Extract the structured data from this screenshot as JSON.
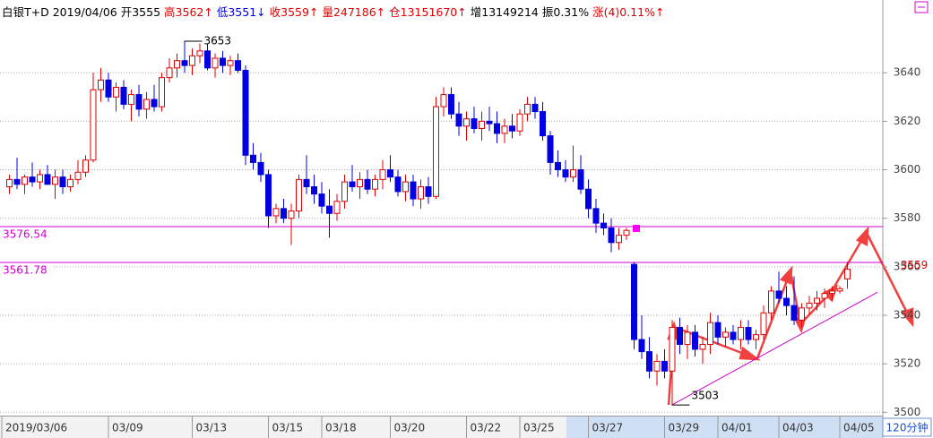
{
  "chart_data": {
    "type": "candlestick",
    "header": [
      {
        "text": "白银T+D 2019/04/06 开3555",
        "tone": "k"
      },
      {
        "text": "高3562↑",
        "tone": "r"
      },
      {
        "text": "低3551↓",
        "tone": "b"
      },
      {
        "text": "收3559↑",
        "tone": "r"
      },
      {
        "text": "量247186↑",
        "tone": "r"
      },
      {
        "text": "仓13151670↑",
        "tone": "r"
      },
      {
        "text": "增13149214",
        "tone": "k"
      },
      {
        "text": "振0.31%",
        "tone": "k"
      },
      {
        "text": "涨(4)0.11%↑",
        "tone": "r"
      }
    ],
    "period": "120分钟",
    "ylim": [
      3499,
      3670
    ],
    "yticks": [
      3500,
      3520,
      3540,
      3560,
      3580,
      3600,
      3620,
      3640
    ],
    "xlim": [
      0,
      110
    ],
    "xticks": [
      {
        "value": 0,
        "label": "2019/03/06"
      },
      {
        "value": 14,
        "label": "03/09"
      },
      {
        "value": 25,
        "label": "03/13"
      },
      {
        "value": 35,
        "label": "03/15"
      },
      {
        "value": 42,
        "label": "03/18"
      },
      {
        "value": 51,
        "label": "03/20"
      },
      {
        "value": 61,
        "label": "03/22"
      },
      {
        "value": 68,
        "label": "03/25"
      },
      {
        "value": 77,
        "label": "03/27"
      },
      {
        "value": 87,
        "label": "03/29"
      },
      {
        "value": 94,
        "label": "04/01"
      },
      {
        "value": 102,
        "label": "04/03"
      },
      {
        "value": 110,
        "label": "04/05"
      }
    ],
    "up_color": "#e00000",
    "down_color": "#0000e0",
    "hlines": [
      3576.54,
      3561.78
    ],
    "hline_color": "#cc00cc",
    "last_price": 3559,
    "annotations": [
      {
        "index": 23,
        "value": 3653
      },
      {
        "index": 87,
        "value": 3503
      }
    ],
    "trendline": {
      "x": [
        87,
        114
      ],
      "y": [
        3503,
        3549.5
      ]
    },
    "candles": [
      [
        3593,
        3598,
        3590,
        3596
      ],
      [
        3596,
        3605,
        3592,
        3594
      ],
      [
        3594,
        3598,
        3590,
        3597
      ],
      [
        3597,
        3603,
        3593,
        3595
      ],
      [
        3595,
        3600,
        3592,
        3598
      ],
      [
        3598,
        3602,
        3594,
        3594
      ],
      [
        3594,
        3600,
        3588,
        3597
      ],
      [
        3597,
        3600,
        3590,
        3593
      ],
      [
        3593,
        3598,
        3591,
        3596
      ],
      [
        3596,
        3604,
        3594,
        3599
      ],
      [
        3599,
        3606,
        3597,
        3604
      ],
      [
        3604,
        3640,
        3603,
        3633
      ],
      [
        3633,
        3642,
        3628,
        3637
      ],
      [
        3637,
        3640,
        3628,
        3630
      ],
      [
        3630,
        3636,
        3624,
        3634
      ],
      [
        3634,
        3637,
        3625,
        3627
      ],
      [
        3627,
        3633,
        3620,
        3631
      ],
      [
        3631,
        3635,
        3622,
        3625
      ],
      [
        3625,
        3632,
        3621,
        3629
      ],
      [
        3629,
        3635,
        3624,
        3626
      ],
      [
        3626,
        3640,
        3624,
        3638
      ],
      [
        3638,
        3646,
        3636,
        3642
      ],
      [
        3642,
        3648,
        3638,
        3645
      ],
      [
        3645,
        3653,
        3640,
        3643
      ],
      [
        3643,
        3650,
        3639,
        3647
      ],
      [
        3647,
        3652,
        3644,
        3649
      ],
      [
        3649,
        3652,
        3641,
        3642
      ],
      [
        3642,
        3648,
        3638,
        3646
      ],
      [
        3646,
        3649,
        3640,
        3643
      ],
      [
        3643,
        3647,
        3639,
        3645
      ],
      [
        3645,
        3648,
        3640,
        3641
      ],
      [
        3641,
        3643,
        3602,
        3606
      ],
      [
        3606,
        3611,
        3600,
        3603
      ],
      [
        3603,
        3607,
        3595,
        3598
      ],
      [
        3598,
        3600,
        3576,
        3581
      ],
      [
        3581,
        3586,
        3578,
        3584
      ],
      [
        3584,
        3588,
        3578,
        3580
      ],
      [
        3580,
        3586,
        3569,
        3583
      ],
      [
        3583,
        3598,
        3580,
        3596
      ],
      [
        3596,
        3606,
        3590,
        3593
      ],
      [
        3593,
        3598,
        3586,
        3590
      ],
      [
        3590,
        3595,
        3582,
        3585
      ],
      [
        3585,
        3592,
        3572,
        3582
      ],
      [
        3582,
        3590,
        3579,
        3587
      ],
      [
        3587,
        3598,
        3584,
        3595
      ],
      [
        3595,
        3602,
        3591,
        3593
      ],
      [
        3593,
        3599,
        3588,
        3596
      ],
      [
        3596,
        3600,
        3590,
        3592
      ],
      [
        3592,
        3598,
        3589,
        3596
      ],
      [
        3596,
        3604,
        3592,
        3600
      ],
      [
        3600,
        3606,
        3595,
        3597
      ],
      [
        3597,
        3600,
        3589,
        3591
      ],
      [
        3591,
        3598,
        3587,
        3595
      ],
      [
        3595,
        3598,
        3585,
        3588
      ],
      [
        3588,
        3596,
        3584,
        3593
      ],
      [
        3593,
        3597,
        3586,
        3589
      ],
      [
        3589,
        3630,
        3588,
        3626
      ],
      [
        3626,
        3634,
        3622,
        3631
      ],
      [
        3631,
        3634,
        3621,
        3623
      ],
      [
        3623,
        3628,
        3614,
        3618
      ],
      [
        3618,
        3624,
        3612,
        3621
      ],
      [
        3621,
        3626,
        3615,
        3617
      ],
      [
        3617,
        3624,
        3612,
        3620
      ],
      [
        3620,
        3626,
        3616,
        3619
      ],
      [
        3619,
        3624,
        3611,
        3615
      ],
      [
        3615,
        3621,
        3611,
        3618
      ],
      [
        3618,
        3623,
        3613,
        3616
      ],
      [
        3616,
        3625,
        3614,
        3623
      ],
      [
        3623,
        3630,
        3620,
        3627
      ],
      [
        3627,
        3630,
        3621,
        3624
      ],
      [
        3624,
        3628,
        3612,
        3614
      ],
      [
        3614,
        3616,
        3598,
        3603
      ],
      [
        3603,
        3608,
        3597,
        3600
      ],
      [
        3600,
        3604,
        3595,
        3597
      ],
      [
        3597,
        3610,
        3595,
        3600
      ],
      [
        3600,
        3606,
        3590,
        3592
      ],
      [
        3592,
        3596,
        3580,
        3584
      ],
      [
        3584,
        3588,
        3574,
        3578
      ],
      [
        3578,
        3582,
        3573,
        3576
      ],
      [
        3576,
        3580,
        3566,
        3570
      ],
      [
        3570,
        3576,
        3567,
        3573
      ],
      [
        3573,
        3576,
        3571,
        3575
      ],
      [
        3561,
        3562,
        3526,
        3530
      ],
      [
        3530,
        3540,
        3522,
        3525
      ],
      [
        3525,
        3531,
        3514,
        3517
      ],
      [
        3517,
        3524,
        3511,
        3521
      ],
      [
        3521,
        3526,
        3514,
        3517
      ],
      [
        3517,
        3538,
        3503,
        3535
      ],
      [
        3535,
        3539,
        3524,
        3528
      ],
      [
        3528,
        3536,
        3522,
        3533
      ],
      [
        3533,
        3536,
        3523,
        3526
      ],
      [
        3526,
        3531,
        3520,
        3528
      ],
      [
        3528,
        3541,
        3524,
        3537
      ],
      [
        3537,
        3540,
        3528,
        3531
      ],
      [
        3531,
        3535,
        3527,
        3533
      ],
      [
        3533,
        3536,
        3528,
        3530
      ],
      [
        3530,
        3538,
        3526,
        3535
      ],
      [
        3535,
        3538,
        3528,
        3530
      ],
      [
        3530,
        3534,
        3526,
        3532
      ],
      [
        3532,
        3544,
        3530,
        3541
      ],
      [
        3541,
        3552,
        3538,
        3550
      ],
      [
        3550,
        3558,
        3545,
        3547
      ],
      [
        3547,
        3552,
        3540,
        3544
      ],
      [
        3544,
        3556,
        3536,
        3538
      ],
      [
        3538,
        3545,
        3535,
        3543
      ],
      [
        3543,
        3548,
        3540,
        3545
      ],
      [
        3545,
        3550,
        3542,
        3547
      ],
      [
        3547,
        3551,
        3543,
        3549
      ],
      [
        3549,
        3552,
        3546,
        3550
      ],
      [
        3550,
        3552,
        3549,
        3551
      ],
      [
        3555,
        3562,
        3551,
        3559
      ]
    ]
  }
}
